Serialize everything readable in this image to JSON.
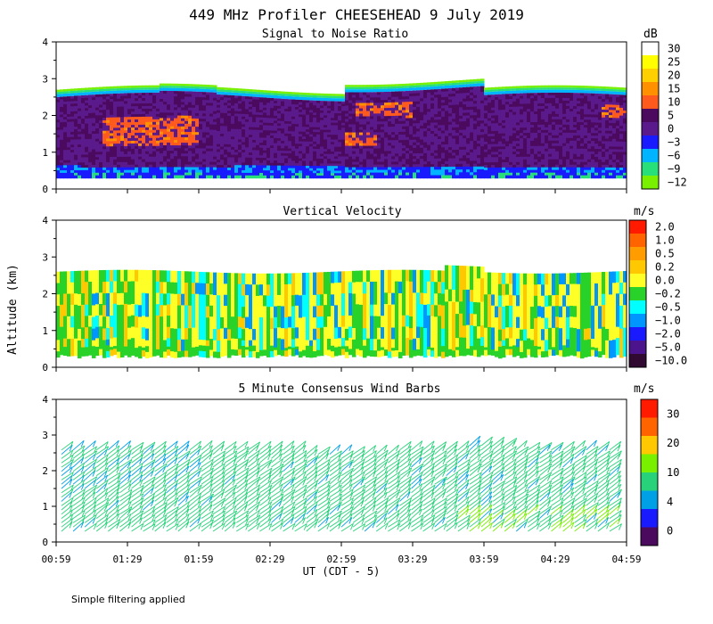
{
  "title": "449 MHz Profiler CHEESEHEAD  9 July 2019",
  "ylabel": "Altitude (km)",
  "xlabel": "UT  (CDT - 5)",
  "note": "Simple filtering applied",
  "x_ticks": [
    "00:59",
    "01:29",
    "01:59",
    "02:29",
    "02:59",
    "03:29",
    "03:59",
    "04:29",
    "04:59"
  ],
  "chart_data": [
    {
      "type": "heatmap",
      "title": "Signal to Noise Ratio",
      "xlabel": "UT  (CDT - 5)",
      "ylabel": "Altitude (km)",
      "xlim": [
        "00:59",
        "04:59"
      ],
      "ylim": [
        0,
        4
      ],
      "y_ticks": [
        0,
        1,
        2,
        3,
        4
      ],
      "colorbar": {
        "unit": "dB",
        "labels": [
          "30",
          "25",
          "20",
          "15",
          "10",
          "5",
          "0",
          "−3",
          "−6",
          "−9",
          "−12"
        ],
        "colors": [
          "#ffffff",
          "#ffff00",
          "#ffd000",
          "#ff9000",
          "#ff5a1e",
          "#4c0a5e",
          "#5a1a8c",
          "#1a1aff",
          "#00b4ff",
          "#28e07a",
          "#78f000"
        ]
      },
      "approx_top_altitude_km": 2.7,
      "grid": false
    },
    {
      "type": "heatmap",
      "title": "Vertical Velocity",
      "xlabel": "UT  (CDT - 5)",
      "ylabel": "Altitude (km)",
      "xlim": [
        "00:59",
        "04:59"
      ],
      "ylim": [
        0,
        4
      ],
      "y_ticks": [
        0,
        1,
        2,
        3,
        4
      ],
      "colorbar": {
        "unit": "m/s",
        "labels": [
          "2.0",
          "1.0",
          "0.5",
          "0.2",
          "0.0",
          "−0.2",
          "−0.5",
          "−1.0",
          "−2.0",
          "−5.0",
          "−10.0"
        ],
        "colors": [
          "#ff1a00",
          "#ff6400",
          "#ff9c00",
          "#ffc800",
          "#ffff28",
          "#28d228",
          "#00ffff",
          "#0096ff",
          "#1a1aff",
          "#4c148c",
          "#300a30"
        ]
      },
      "approx_top_altitude_km": 2.6,
      "grid": false
    },
    {
      "type": "scatter",
      "title": "5 Minute Consensus Wind Barbs",
      "xlabel": "UT  (CDT - 5)",
      "ylabel": "Altitude (km)",
      "xlim": [
        "00:59",
        "04:59"
      ],
      "ylim": [
        0,
        4
      ],
      "y_ticks": [
        0,
        1,
        2,
        3,
        4
      ],
      "colorbar": {
        "unit": "m/s",
        "labels": [
          "30",
          "20",
          "10",
          "4",
          "0"
        ],
        "colors": [
          "#ff1a00",
          "#ff6400",
          "#ffc800",
          "#78f000",
          "#28d27a",
          "#00a0e6",
          "#1a1aff",
          "#4c0a5e"
        ]
      },
      "approx_top_altitude_km": 2.6,
      "grid": false
    }
  ]
}
